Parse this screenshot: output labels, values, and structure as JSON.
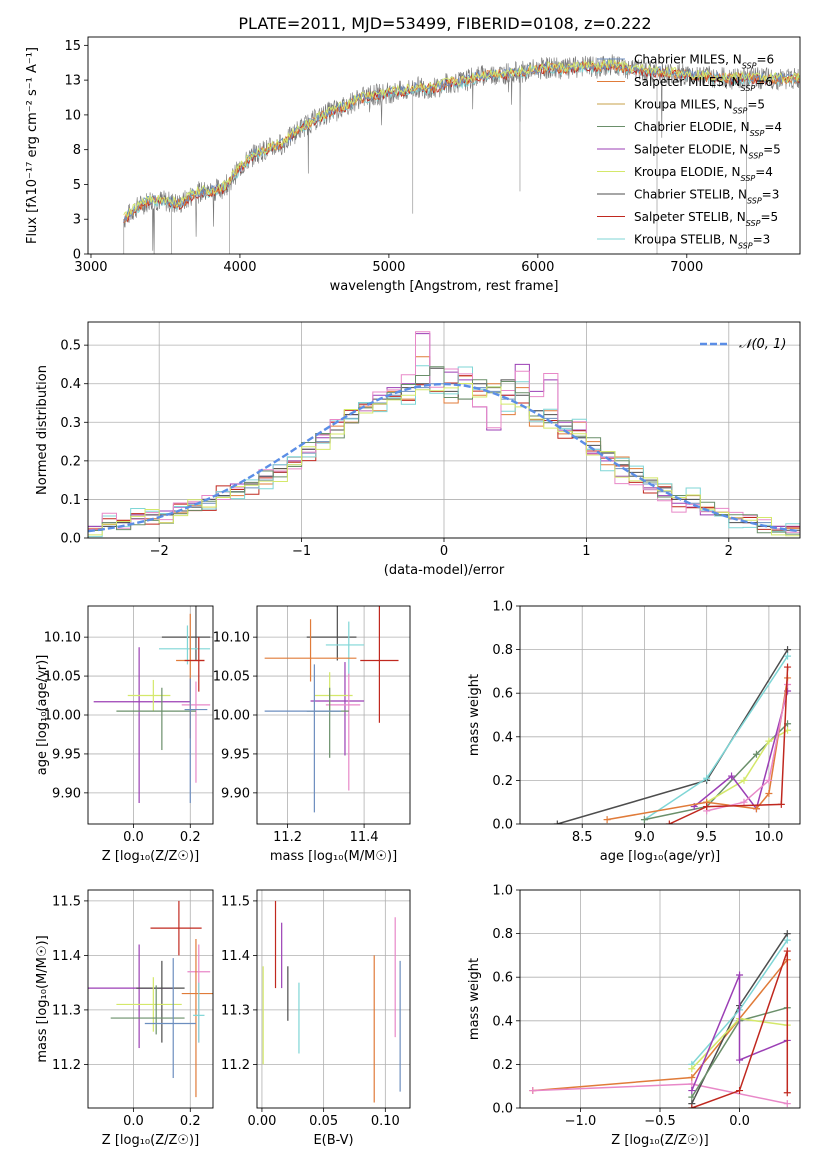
{
  "figure": {
    "title": "PLATE=2011, MJD=53499, FIBERID=0108, z=0.222"
  },
  "colors": {
    "series": [
      "#6c8ebf",
      "#e07b39",
      "#c7a04a",
      "#6a8f6a",
      "#9b3fb5",
      "#d4e86a",
      "#4d4d4d",
      "#c0281f",
      "#7fd6d6",
      "#e888c8"
    ]
  },
  "chart_data": [
    {
      "id": "spectrum",
      "type": "line",
      "xlabel": "wavelength [Angstrom, rest frame]",
      "ylabel": "Flux [fλ10⁻¹⁷ erg cm⁻² s⁻¹ A⁻¹]",
      "xlim": [
        2980,
        7760
      ],
      "ylim": [
        0,
        15.6
      ],
      "xticks": [
        3000,
        4000,
        5000,
        6000,
        7000
      ],
      "yticks": [
        0.0,
        2.5,
        5.0,
        7.5,
        10.0,
        12.5,
        15.0
      ],
      "grid": false,
      "legend_position": "top-right",
      "legend": [
        "Chabrier MILES, N_SSP=6",
        "Salpeter MILES, N_SSP=6",
        "Kroupa MILES, N_SSP=5",
        "Chabrier ELODIE, N_SSP=4",
        "Salpeter ELODIE, N_SSP=5",
        "Kroupa ELODIE, N_SSP=4",
        "Chabrier STELIB, N_SSP=3",
        "Salpeter STELIB, N_SSP=5",
        "Kroupa STELIB, N_SSP=3"
      ],
      "x": [
        3220,
        3300,
        3400,
        3500,
        3600,
        3700,
        3800,
        3900,
        4000,
        4100,
        4200,
        4300,
        4400,
        4500,
        4600,
        4700,
        4800,
        4900,
        5000,
        5100,
        5200,
        5300,
        5400,
        5500,
        5600,
        5700,
        5800,
        5900,
        6000,
        6100,
        6200,
        6300,
        6400,
        6500,
        6600,
        6700,
        6800,
        6900,
        7000,
        7100,
        7200,
        7300,
        7400,
        7500
      ],
      "y": [
        2.5,
        3.3,
        3.9,
        3.8,
        3.6,
        4.4,
        4.5,
        4.8,
        6.2,
        7.2,
        7.6,
        8.0,
        9.0,
        9.6,
        10.2,
        10.6,
        11.2,
        11.4,
        11.6,
        11.7,
        12.0,
        11.9,
        12.3,
        12.4,
        12.8,
        12.9,
        13.0,
        13.1,
        13.3,
        13.4,
        13.3,
        13.5,
        13.4,
        13.6,
        13.3,
        13.2,
        13.1,
        13.0,
        12.9,
        12.8,
        12.7,
        12.6,
        12.7,
        12.6
      ]
    },
    {
      "id": "residuals",
      "type": "histogram",
      "xlabel": "(data-model)/error",
      "ylabel": "Normed distribution",
      "xlim": [
        -2.5,
        2.5
      ],
      "ylim": [
        0,
        0.56
      ],
      "xticks": [
        -2,
        -1,
        0,
        1,
        2
      ],
      "yticks": [
        0.0,
        0.1,
        0.2,
        0.3,
        0.4,
        0.5
      ],
      "grid": true,
      "legend_position": "top-right",
      "legend": [
        "𝒩(0, 1)"
      ],
      "bin_edges": [
        -2.5,
        -2.4,
        -2.3,
        -2.2,
        -2.1,
        -2.0,
        -1.9,
        -1.8,
        -1.7,
        -1.6,
        -1.5,
        -1.4,
        -1.3,
        -1.2,
        -1.1,
        -1.0,
        -0.9,
        -0.8,
        -0.7,
        -0.6,
        -0.5,
        -0.4,
        -0.3,
        -0.2,
        -0.1,
        0.0,
        0.1,
        0.2,
        0.3,
        0.4,
        0.5,
        0.6,
        0.7,
        0.8,
        0.9,
        1.0,
        1.1,
        1.2,
        1.3,
        1.4,
        1.5,
        1.6,
        1.7,
        1.8,
        1.9,
        2.0,
        2.1,
        2.2,
        2.3,
        2.4,
        2.5
      ],
      "series": [
        {
          "values": [
            0.03,
            0.03,
            0.04,
            0.05,
            0.05,
            0.06,
            0.07,
            0.08,
            0.09,
            0.11,
            0.12,
            0.13,
            0.15,
            0.17,
            0.19,
            0.22,
            0.25,
            0.28,
            0.31,
            0.33,
            0.35,
            0.37,
            0.38,
            0.39,
            0.4,
            0.4,
            0.4,
            0.39,
            0.38,
            0.36,
            0.35,
            0.33,
            0.31,
            0.28,
            0.26,
            0.23,
            0.21,
            0.18,
            0.16,
            0.14,
            0.12,
            0.1,
            0.09,
            0.07,
            0.06,
            0.05,
            0.04,
            0.04,
            0.03,
            0.03
          ]
        },
        {
          "values": [
            0.025,
            0.035,
            0.045,
            0.06,
            0.05,
            0.07,
            0.065,
            0.085,
            0.08,
            0.12,
            0.11,
            0.14,
            0.14,
            0.18,
            0.2,
            0.21,
            0.27,
            0.29,
            0.3,
            0.34,
            0.33,
            0.38,
            0.36,
            0.47,
            0.38,
            0.35,
            0.42,
            0.37,
            0.4,
            0.32,
            0.39,
            0.29,
            0.33,
            0.27,
            0.3,
            0.25,
            0.19,
            0.21,
            0.18,
            0.13,
            0.14,
            0.1,
            0.11,
            0.08,
            0.06,
            0.05,
            0.04,
            0.03,
            0.03,
            0.025
          ]
        },
        {
          "values": [
            0.03,
            0.04,
            0.04,
            0.06,
            0.06,
            0.07,
            0.08,
            0.09,
            0.1,
            0.12,
            0.14,
            0.14,
            0.16,
            0.19,
            0.2,
            0.23,
            0.26,
            0.3,
            0.32,
            0.35,
            0.37,
            0.39,
            0.4,
            0.53,
            0.38,
            0.43,
            0.41,
            0.34,
            0.28,
            0.37,
            0.45,
            0.38,
            0.41,
            0.3,
            0.28,
            0.22,
            0.2,
            0.16,
            0.16,
            0.13,
            0.11,
            0.09,
            0.08,
            0.06,
            0.06,
            0.05,
            0.04,
            0.03,
            0.03,
            0.03
          ]
        },
        {
          "values": [
            0.02,
            0.03,
            0.04,
            0.05,
            0.06,
            0.06,
            0.07,
            0.08,
            0.1,
            0.11,
            0.12,
            0.14,
            0.16,
            0.18,
            0.21,
            0.23,
            0.27,
            0.28,
            0.32,
            0.35,
            0.36,
            0.36,
            0.39,
            0.4,
            0.44,
            0.38,
            0.36,
            0.4,
            0.39,
            0.41,
            0.37,
            0.33,
            0.32,
            0.29,
            0.26,
            0.24,
            0.22,
            0.19,
            0.17,
            0.15,
            0.13,
            0.1,
            0.1,
            0.07,
            0.06,
            0.04,
            0.04,
            0.03,
            0.02,
            0.02
          ]
        }
      ],
      "gaussian": {
        "mu": 0,
        "sigma": 1
      }
    },
    {
      "id": "age-vs-z",
      "type": "errorbar",
      "xlabel": "Z [log₁₀(Z/Z☉)]",
      "ylabel": "age  [log₁₀(age/yr)]",
      "xlim": [
        -0.16,
        0.28
      ],
      "ylim": [
        9.86,
        10.14
      ],
      "xticks": [
        0.0,
        0.2
      ],
      "yticks": [
        9.9,
        9.95,
        10.0,
        10.05,
        10.1
      ],
      "grid": true
    },
    {
      "id": "age-vs-mass",
      "type": "errorbar",
      "xlabel": "mass [log₁₀(M/M☉)]",
      "ylabel": "",
      "xlim": [
        11.12,
        11.52
      ],
      "ylim": [
        9.86,
        10.14
      ],
      "xticks": [
        11.2,
        11.4
      ],
      "yticks": [
        9.9,
        9.95,
        10.0,
        10.05,
        10.1
      ],
      "grid": true
    },
    {
      "id": "weight-vs-age",
      "type": "line",
      "xlabel": "age  [log₁₀(age/yr)]",
      "ylabel": "mass weight",
      "xlim": [
        8.0,
        10.25
      ],
      "ylim": [
        0,
        1.0
      ],
      "xticks": [
        8.5,
        9.0,
        9.5,
        10.0
      ],
      "yticks": [
        0.0,
        0.2,
        0.4,
        0.6,
        0.8,
        1.0
      ],
      "grid": true
    },
    {
      "id": "mass-vs-z",
      "type": "errorbar",
      "xlabel": "Z [log₁₀(Z/Z☉)]",
      "ylabel": "mass [log₁₀(M/M☉)]",
      "xlim": [
        -0.16,
        0.28
      ],
      "ylim": [
        11.12,
        11.52
      ],
      "xticks": [
        0.0,
        0.2
      ],
      "yticks": [
        11.2,
        11.3,
        11.4,
        11.5
      ],
      "grid": true
    },
    {
      "id": "mass-vs-ebv",
      "type": "errorbar",
      "xlabel": "E(B-V)",
      "ylabel": "",
      "xlim": [
        -0.004,
        0.12
      ],
      "ylim": [
        11.12,
        11.52
      ],
      "xticks": [
        0.0,
        0.05,
        0.1
      ],
      "yticks": [
        11.2,
        11.3,
        11.4,
        11.5
      ],
      "grid": true
    },
    {
      "id": "weight-vs-z",
      "type": "line",
      "xlabel": "Z [log₁₀(Z/Z☉)]",
      "ylabel": "mass weight",
      "xlim": [
        -1.38,
        0.38
      ],
      "ylim": [
        0,
        1.0
      ],
      "xticks": [
        -1.0,
        -0.5,
        0.0
      ],
      "yticks": [
        0.0,
        0.2,
        0.4,
        0.6,
        0.8,
        1.0
      ],
      "grid": true
    }
  ]
}
